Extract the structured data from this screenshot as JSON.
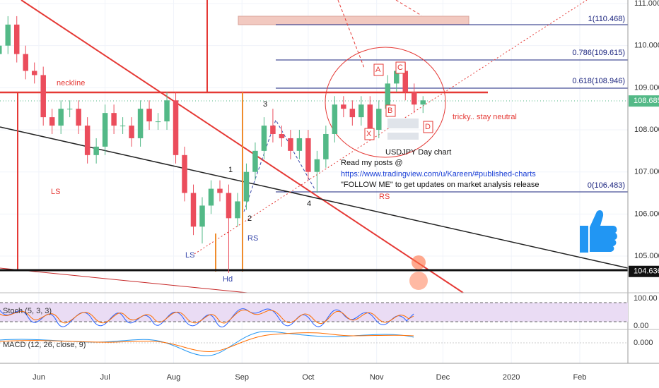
{
  "chart_data": {
    "type": "candlestick",
    "x": [
      13,
      17,
      21,
      25,
      29,
      33,
      37,
      41,
      45,
      49,
      53,
      57,
      61,
      65,
      69,
      73,
      77,
      81,
      85,
      89,
      93,
      97,
      101,
      105,
      109,
      113,
      117,
      121,
      125,
      129,
      133,
      137,
      141,
      145,
      149,
      153,
      157,
      161,
      165,
      169,
      173,
      177,
      181,
      185,
      189,
      193,
      197,
      201,
      205
    ],
    "open": [
      109.8,
      110.0,
      110.5,
      109.8,
      109.4,
      109.3,
      108.3,
      108.1,
      108.5,
      108.5,
      108.1,
      107.4,
      107.6,
      108.4,
      108.1,
      108.1,
      107.8,
      108.5,
      108.2,
      108.2,
      108.7,
      107.4,
      106.5,
      105.7,
      106.2,
      106.6,
      106.5,
      105.9,
      106.3,
      107.0,
      107.5,
      108.1,
      107.9,
      107.8,
      107.5,
      107.8,
      107.0,
      107.3,
      107.9,
      108.6,
      108.5,
      108.3,
      108.6,
      108.0,
      108.5,
      109.1,
      109.4,
      108.9,
      108.6
    ],
    "high": [
      110.2,
      110.7,
      110.7,
      110.0,
      109.6,
      109.5,
      108.5,
      108.7,
      108.7,
      108.7,
      108.3,
      107.8,
      108.6,
      108.6,
      108.3,
      108.3,
      108.7,
      108.7,
      108.4,
      108.9,
      108.9,
      107.6,
      106.7,
      106.4,
      106.8,
      106.8,
      106.7,
      106.5,
      107.2,
      107.7,
      108.3,
      108.5,
      108.1,
      108.0,
      108.0,
      108.0,
      107.5,
      108.1,
      108.8,
      108.8,
      108.7,
      108.8,
      108.8,
      108.7,
      109.3,
      109.6,
      109.6,
      109.1,
      108.8
    ],
    "low": [
      109.6,
      109.8,
      109.6,
      109.2,
      109.1,
      108.1,
      107.9,
      107.9,
      108.3,
      107.9,
      107.2,
      107.2,
      107.4,
      107.9,
      107.9,
      107.6,
      107.6,
      108.0,
      108.0,
      108.0,
      107.2,
      106.3,
      105.5,
      105.3,
      106.0,
      106.3,
      104.6,
      105.7,
      106.1,
      106.8,
      107.3,
      107.7,
      107.6,
      107.3,
      107.3,
      106.8,
      106.5,
      107.1,
      107.7,
      108.3,
      108.1,
      108.1,
      107.8,
      107.8,
      108.3,
      108.9,
      108.7,
      108.4,
      108.4
    ],
    "close": [
      110.0,
      110.5,
      109.8,
      109.4,
      109.3,
      108.3,
      108.1,
      108.5,
      108.5,
      108.1,
      107.4,
      107.6,
      108.4,
      108.1,
      108.1,
      107.8,
      108.5,
      108.2,
      108.2,
      108.7,
      107.4,
      106.5,
      105.7,
      106.2,
      106.6,
      106.5,
      105.9,
      106.3,
      107.0,
      107.5,
      108.1,
      107.9,
      107.8,
      107.5,
      107.8,
      107.0,
      107.3,
      107.9,
      108.6,
      108.5,
      108.3,
      108.6,
      108.0,
      108.5,
      109.1,
      109.4,
      108.9,
      108.6,
      108.7
    ],
    "up_color": "#53b987",
    "down_color": "#eb4d5c",
    "xlim": [
      13.4,
      297.8
    ],
    "xticks": [
      {
        "value": 31,
        "label": "Jun"
      },
      {
        "value": 61,
        "label": "Jul"
      },
      {
        "value": 92,
        "label": "Aug"
      },
      {
        "value": 123,
        "label": "Sep"
      },
      {
        "value": 153,
        "label": "Oct"
      },
      {
        "value": 184,
        "label": "Nov"
      },
      {
        "value": 214,
        "label": "Dec"
      },
      {
        "value": 245,
        "label": "2020"
      },
      {
        "value": 276,
        "label": "Feb"
      }
    ],
    "ylim": [
      104.129,
      111.084
    ],
    "yticks": [
      {
        "value": 105,
        "label": "105.000"
      },
      {
        "value": 106,
        "label": "106.000"
      },
      {
        "value": 107,
        "label": "107.000"
      },
      {
        "value": 108,
        "label": "108.000"
      },
      {
        "value": 109,
        "label": "109.000"
      },
      {
        "value": 110,
        "label": "110.000"
      },
      {
        "value": 111,
        "label": "111.000"
      }
    ],
    "last_price": 108.685,
    "support_price": 104.636,
    "fib_labels": [
      "1(110.468)",
      "0.786(109.615)",
      "0.618(108.946)",
      "0(106.483)"
    ],
    "annotations": [
      "neckline",
      "LS",
      "LS",
      "RS",
      "Hd",
      "RS",
      "1",
      "2",
      "3",
      "4",
      "A",
      "B",
      "C",
      "D",
      "X",
      "tricky.. stay neutral",
      "USDJPY Day chart",
      "Read my posts @",
      "https://www.tradingview.com/u/Kareen/#published-charts",
      "\"FOLLOW ME\" to get updates on market analysis release"
    ],
    "stoch": {
      "label": "Stoch (5, 3, 3)",
      "ticks": [
        "100.00",
        "0.00"
      ]
    },
    "macd": {
      "label": "MACD (12, 26, close, 9)",
      "ticks": [
        "0.000"
      ]
    }
  }
}
